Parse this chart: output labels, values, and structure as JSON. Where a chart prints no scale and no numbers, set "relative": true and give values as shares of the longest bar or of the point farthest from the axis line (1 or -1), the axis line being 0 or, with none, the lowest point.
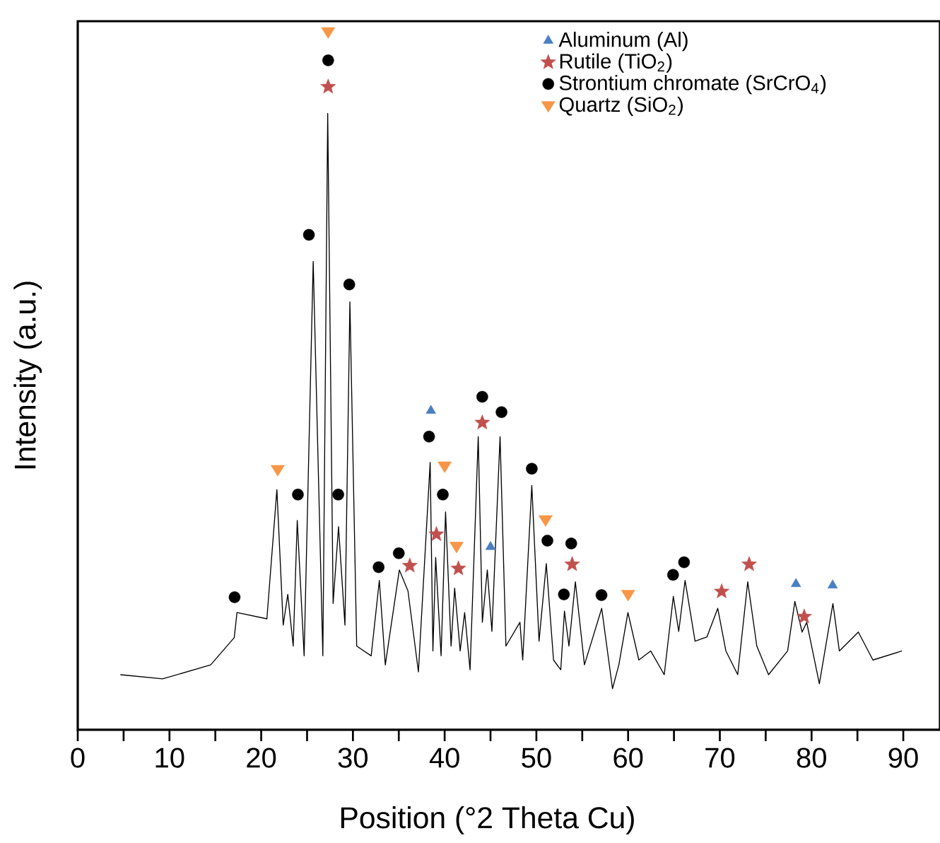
{
  "chart_data": {
    "type": "line",
    "relative": true,
    "xlabel": "Position (°2 Theta Cu)",
    "ylabel": "Intensity (a.u.)",
    "xlim": [
      0,
      94
    ],
    "xticks": [
      0,
      {
        "value": 5,
        "label": null
      },
      10,
      {
        "value": 15,
        "label": null
      },
      20,
      {
        "value": 25,
        "label": null
      },
      30,
      {
        "value": 35,
        "label": null
      },
      40,
      {
        "value": 45,
        "label": null
      },
      50,
      {
        "value": 55,
        "label": null
      },
      60,
      {
        "value": 65,
        "label": null
      },
      70,
      {
        "value": 75,
        "label": null
      },
      80,
      {
        "value": 85,
        "label": null
      },
      90
    ],
    "legend": "top right",
    "series": [
      {
        "color": "#000000",
        "marker": "none",
        "x": [
          4.65,
          9.25,
          14.49,
          17.06,
          17.36,
          20.62,
          21.71,
          22.4,
          22.9,
          23.49,
          23.93,
          24.68,
          25.67,
          26.72,
          27.25,
          27.84,
          28.43,
          29.13,
          29.67,
          30.41,
          31.99,
          32.88,
          33.53,
          35.06,
          36.0,
          37.14,
          38.42,
          38.72,
          39.02,
          39.61,
          40.1,
          40.7,
          41.09,
          41.69,
          42.18,
          42.77,
          43.66,
          44.11,
          44.65,
          45.15,
          46.04,
          46.68,
          48.21,
          48.51,
          49.5,
          50.29,
          51.08,
          51.87,
          52.66,
          53.06,
          53.55,
          54.25,
          55.24,
          57.12,
          58.3,
          58.99,
          59.98,
          61.17,
          62.46,
          63.94,
          64.93,
          65.52,
          66.21,
          67.3,
          68.59,
          69.77,
          70.66,
          71.95,
          73.04,
          74.03,
          75.31,
          77.39,
          78.18,
          78.97,
          79.47,
          80.85,
          82.33,
          83.03,
          85.1,
          86.69,
          89.85
        ],
        "values": [
          0.079,
          0.073,
          0.093,
          0.132,
          0.168,
          0.159,
          0.344,
          0.15,
          0.194,
          0.12,
          0.3,
          0.106,
          0.671,
          0.106,
          0.883,
          0.181,
          0.291,
          0.15,
          0.613,
          0.12,
          0.106,
          0.214,
          0.093,
          0.229,
          0.199,
          0.083,
          0.383,
          0.113,
          0.247,
          0.106,
          0.312,
          0.12,
          0.203,
          0.113,
          0.168,
          0.086,
          0.42,
          0.154,
          0.229,
          0.141,
          0.42,
          0.12,
          0.154,
          0.1,
          0.35,
          0.127,
          0.238,
          0.1,
          0.086,
          0.17,
          0.12,
          0.212,
          0.093,
          0.174,
          0.059,
          0.093,
          0.168,
          0.1,
          0.113,
          0.079,
          0.191,
          0.141,
          0.214,
          0.127,
          0.133,
          0.174,
          0.113,
          0.079,
          0.212,
          0.12,
          0.079,
          0.113,
          0.184,
          0.14,
          0.154,
          0.066,
          0.181,
          0.113,
          0.14,
          0.1,
          0.113
        ]
      },
      {
        "type": "scatter",
        "name": "Aluminum (Al)",
        "color": "#4a7fc1",
        "marker": "triangle",
        "x": [
          38.5,
          45.0,
          78.3,
          82.3
        ],
        "values": [
          0.457,
          0.262,
          0.209,
          0.207
        ]
      },
      {
        "type": "scatter",
        "name": "Rutile (TiO$_{2}$)",
        "color": "#c0504d",
        "marker": "star",
        "x": [
          27.3,
          36.2,
          39.1,
          41.5,
          44.1,
          53.9,
          70.2,
          73.2,
          79.2
        ],
        "values": [
          0.921,
          0.235,
          0.28,
          0.231,
          0.44,
          0.237,
          0.198,
          0.237,
          0.162
        ]
      },
      {
        "type": "scatter",
        "name": "Strontium chromate (SrCrO$_{4}$)",
        "color": "#000000",
        "marker": "circle",
        "x": [
          17.1,
          24.0,
          25.2,
          27.3,
          28.4,
          29.6,
          32.8,
          35.0,
          38.3,
          39.8,
          44.1,
          46.2,
          49.5,
          51.2,
          53.0,
          53.8,
          57.1,
          64.9,
          66.1
        ],
        "values": [
          0.19,
          0.337,
          0.709,
          0.959,
          0.337,
          0.638,
          0.233,
          0.253,
          0.42,
          0.337,
          0.477,
          0.455,
          0.374,
          0.271,
          0.194,
          0.267,
          0.193,
          0.222,
          0.24
        ]
      },
      {
        "type": "scatter",
        "name": "Quartz (SiO$_{2}$)",
        "color": "#f79646",
        "marker": "triangle_down",
        "x": [
          21.8,
          27.3,
          40.0,
          41.3,
          51.0,
          60.0
        ],
        "values": [
          0.373,
          1.0,
          0.378,
          0.263,
          0.301,
          0.194
        ]
      }
    ]
  }
}
